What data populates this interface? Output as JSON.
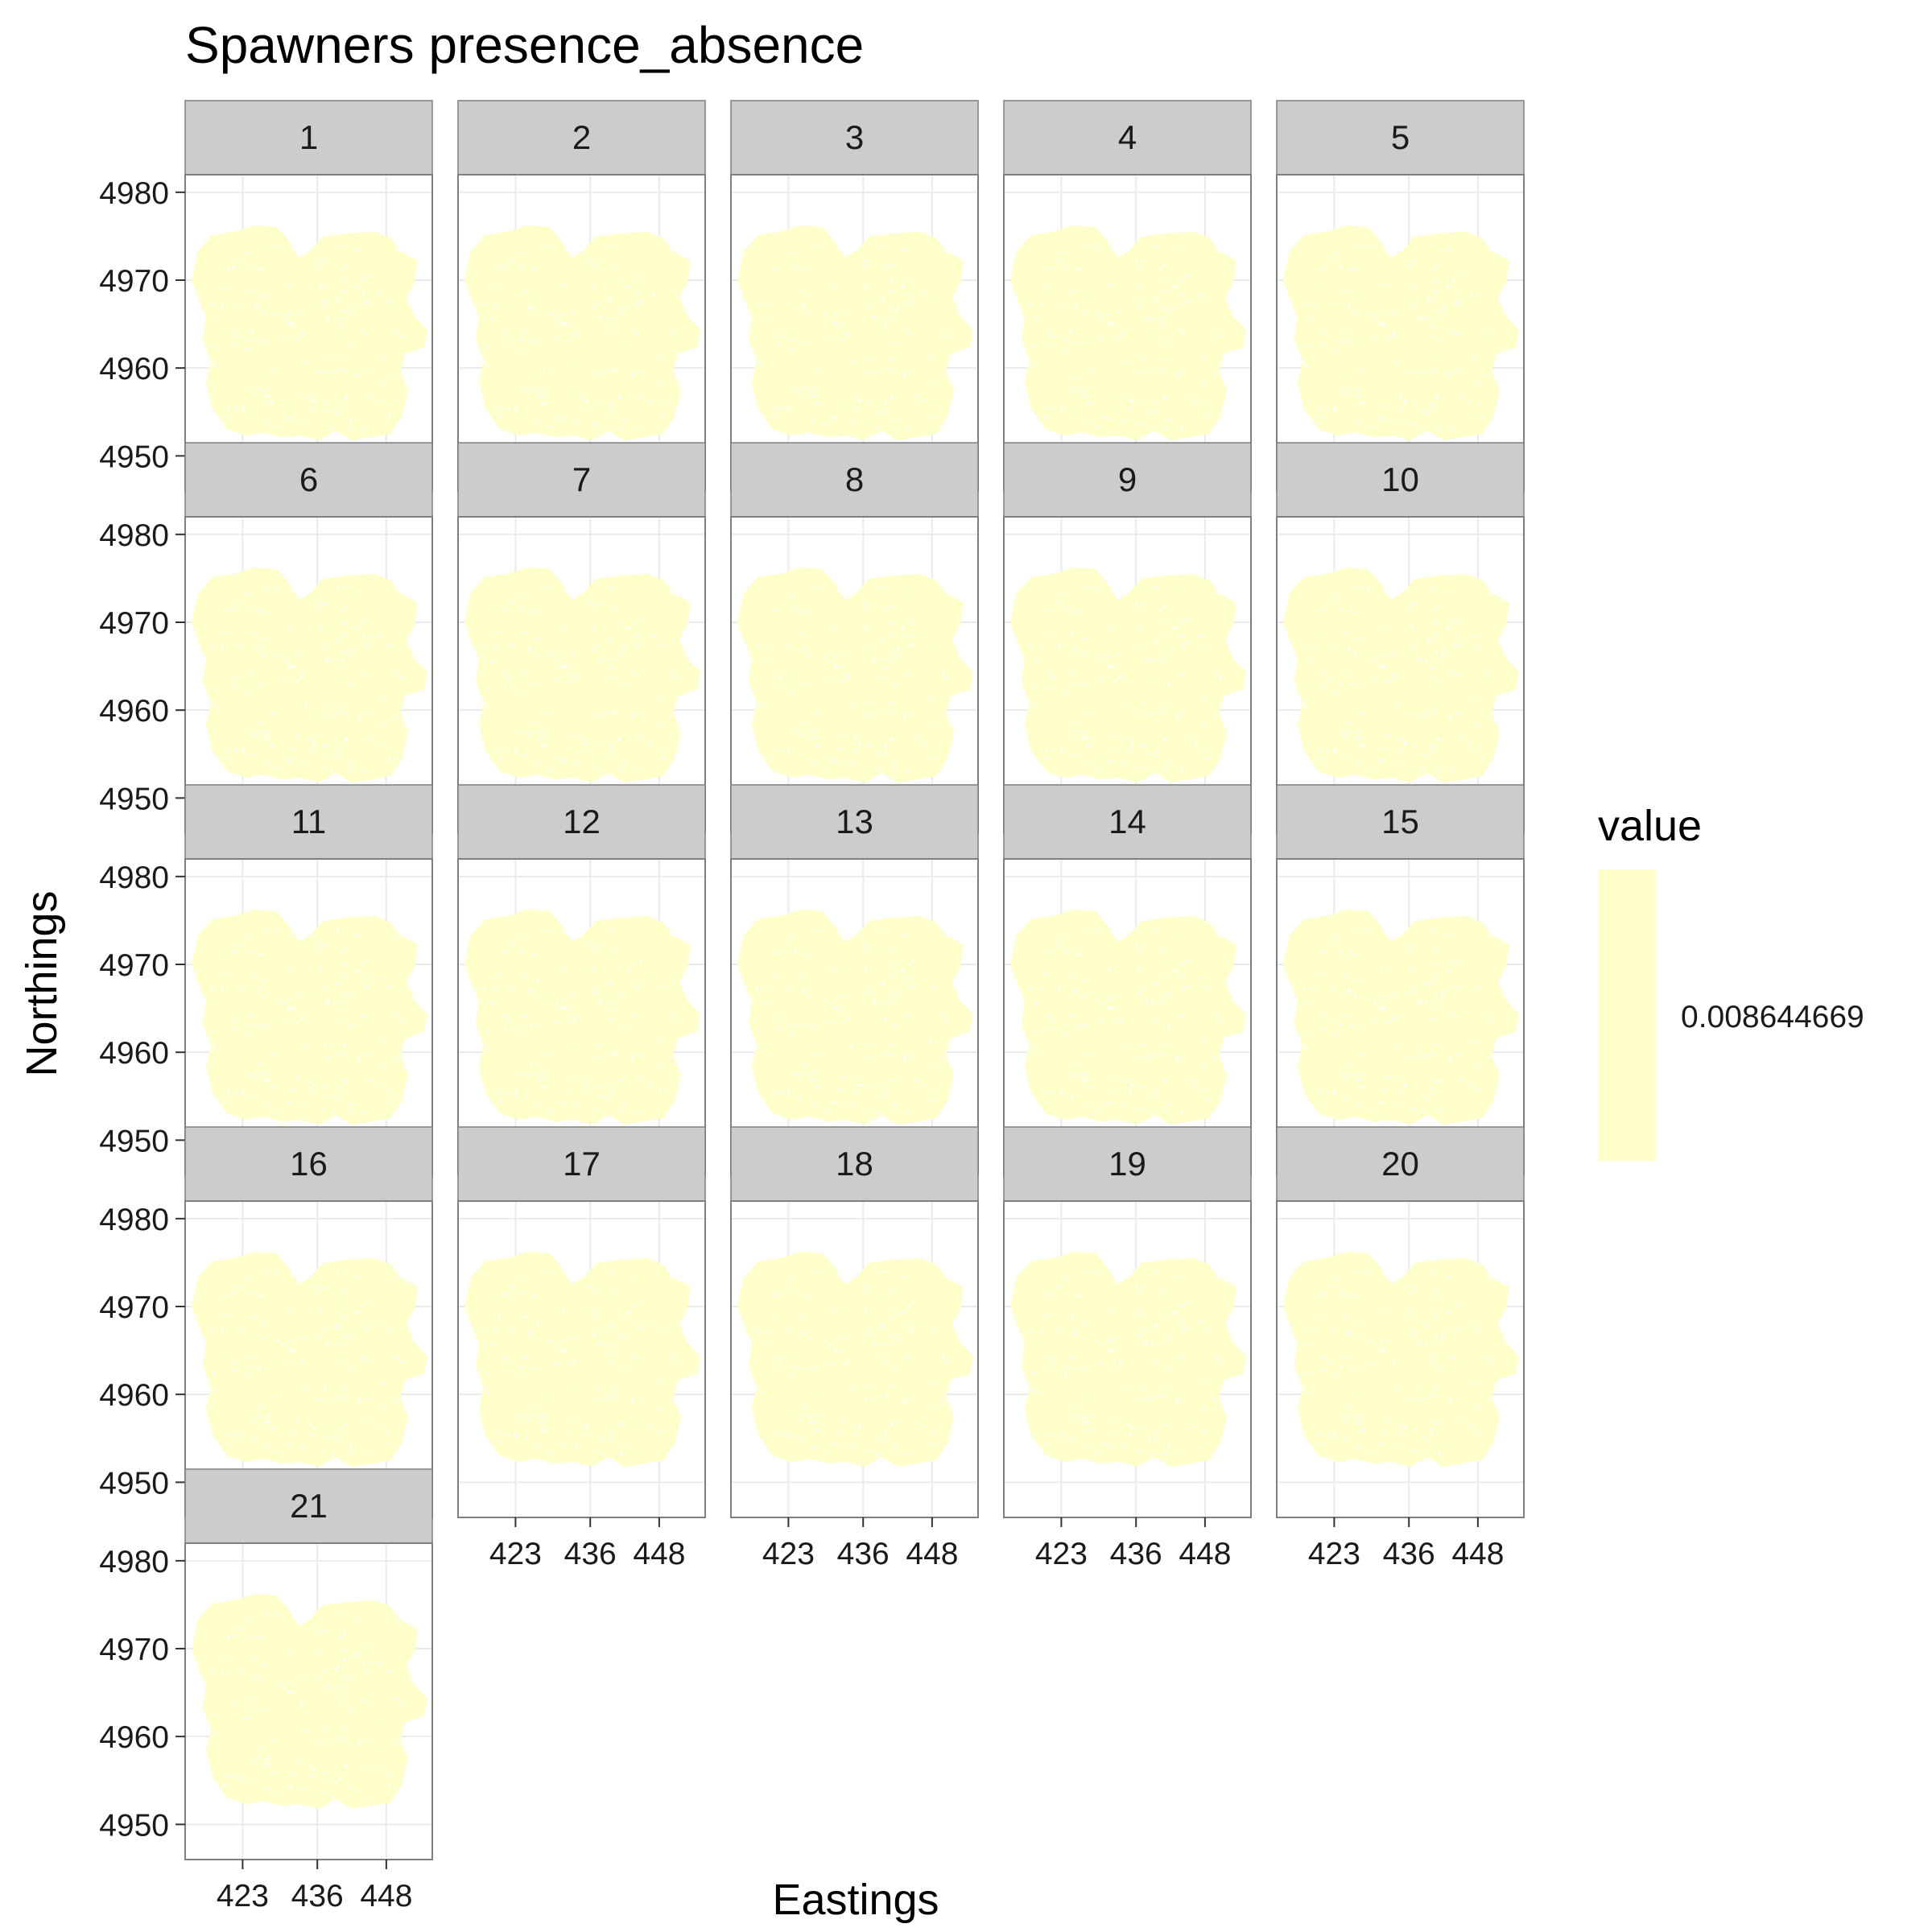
{
  "chart_data": {
    "type": "heatmap",
    "title": "Spawners presence_absence",
    "xlabel": "Eastings",
    "ylabel": "Northings",
    "x_ticks": [
      423,
      436,
      448
    ],
    "y_ticks": [
      4980,
      4970,
      4960,
      4950
    ],
    "xlim": [
      413,
      456
    ],
    "ylim": [
      4946,
      4982
    ],
    "panels": [
      "1",
      "2",
      "3",
      "4",
      "5",
      "6",
      "7",
      "8",
      "9",
      "10",
      "11",
      "12",
      "13",
      "14",
      "15",
      "16",
      "17",
      "18",
      "19",
      "20",
      "21"
    ],
    "fill_color": "#FFFFCC",
    "legend": {
      "title": "value",
      "placement": "right",
      "label": "0.008644669"
    },
    "grid": true
  }
}
